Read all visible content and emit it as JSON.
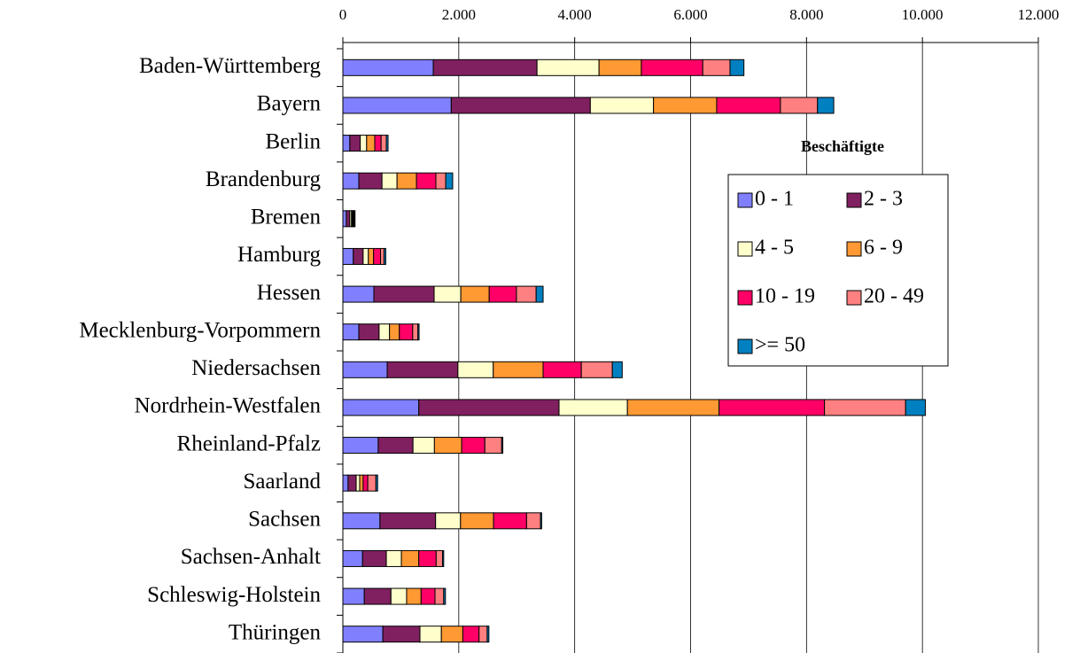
{
  "chart_data": {
    "type": "stacked_bar_horizontal",
    "categories": [
      "Baden-Württemberg",
      "Bayern",
      "Berlin",
      "Brandenburg",
      "Bremen",
      "Hamburg",
      "Hessen",
      "Mecklenburg-Vorpommern",
      "Niedersachsen",
      "Nordrhein-Westfalen",
      "Rheinland-Pfalz",
      "Saarland",
      "Sachsen",
      "Sachsen-Anhalt",
      "Schleswig-Holstein",
      "Thüringen"
    ],
    "series": [
      {
        "name": "0 - 1",
        "color": "#8080ff",
        "values": [
          1560,
          1870,
          120,
          275,
          60,
          180,
          535,
          275,
          765,
          1310,
          610,
          90,
          640,
          340,
          370,
          690
        ]
      },
      {
        "name": "2 - 3",
        "color": "#802060",
        "values": [
          1790,
          2400,
          180,
          400,
          60,
          170,
          1040,
          350,
          1220,
          2420,
          600,
          140,
          960,
          410,
          460,
          640
        ]
      },
      {
        "name": "4 - 5",
        "color": "#ffffcc",
        "values": [
          1070,
          1090,
          110,
          260,
          30,
          90,
          460,
          180,
          610,
          1180,
          370,
          60,
          430,
          260,
          270,
          370
        ]
      },
      {
        "name": "6 - 9",
        "color": "#ff9933",
        "values": [
          730,
          1090,
          140,
          335,
          15,
          90,
          490,
          170,
          860,
          1580,
          470,
          60,
          570,
          300,
          250,
          370
        ]
      },
      {
        "name": "10 - 19",
        "color": "#ff0066",
        "values": [
          1060,
          1100,
          110,
          335,
          15,
          120,
          470,
          230,
          660,
          1820,
          400,
          80,
          570,
          300,
          240,
          280
        ]
      },
      {
        "name": "20 - 49",
        "color": "#ff8080",
        "values": [
          470,
          640,
          90,
          170,
          15,
          60,
          340,
          90,
          535,
          1400,
          290,
          140,
          240,
          110,
          150,
          140
        ]
      },
      {
        "name": ">= 50",
        "color": "#0080c0",
        "values": [
          240,
          280,
          30,
          120,
          15,
          30,
          120,
          20,
          170,
          340,
          20,
          30,
          20,
          20,
          30,
          30
        ]
      }
    ],
    "xlim": [
      0,
      12000
    ],
    "xticks": [
      0,
      {
        "value": 2000,
        "label": "2.000"
      },
      {
        "value": 4000,
        "label": "4.000"
      },
      {
        "value": 6000,
        "label": "6.000"
      },
      {
        "value": 8000,
        "label": "8.000"
      },
      {
        "value": 10000,
        "label": "10.000"
      },
      {
        "value": 12000,
        "label": "12.000"
      }
    ],
    "grid": true,
    "legend_title": "Beschäftigte",
    "legend": "right"
  }
}
